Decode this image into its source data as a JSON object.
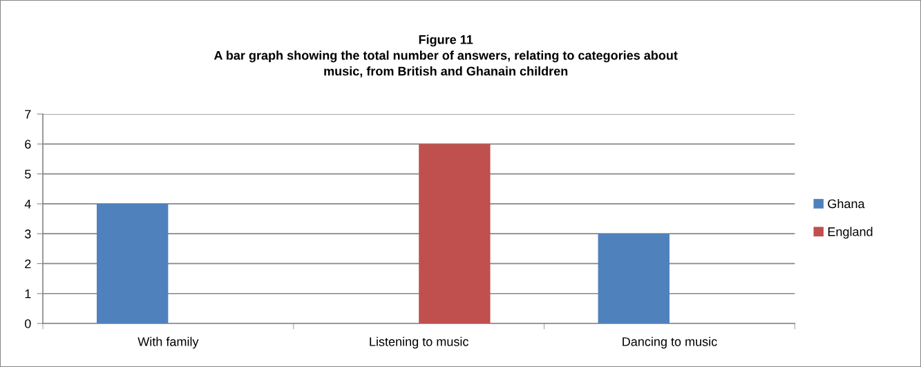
{
  "chart_data": {
    "type": "bar",
    "title": "Figure 11\nA bar graph showing the total number of answers, relating to categories about\nmusic, from British and Ghanain children",
    "categories": [
      "With family",
      "Listening to music",
      "Dancing to music"
    ],
    "series": [
      {
        "name": "Ghana",
        "color": "#4f81bd",
        "values": [
          4,
          null,
          3
        ]
      },
      {
        "name": "England",
        "color": "#c0504d",
        "values": [
          null,
          6,
          null
        ]
      }
    ],
    "ylim": [
      0,
      7
    ],
    "yticks": [
      0,
      1,
      2,
      3,
      4,
      5,
      6,
      7
    ],
    "grid": "y",
    "legend": "right"
  }
}
